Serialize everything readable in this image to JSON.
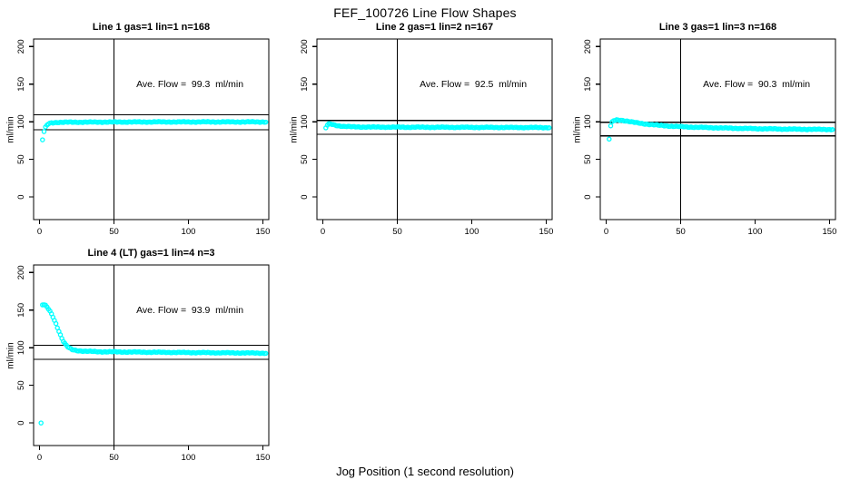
{
  "page": {
    "main_title": "FEF_100726  Line Flow Shapes",
    "x_axis_label": "Jog Position (1 second resolution)",
    "background_color": "#ffffff",
    "point_color": "#00ffff",
    "axis_color": "#000000",
    "text_color": "#000000"
  },
  "chart_data": [
    {
      "type": "scatter",
      "title": "Line 1 gas=1 lin=1 n=168",
      "ylabel": "ml/min",
      "annotation": "Ave. Flow =  99.3  ml/min",
      "ave_flow_ml_min": 99.3,
      "n": 168,
      "xlim": [
        -4,
        154
      ],
      "ylim": [
        -30,
        210
      ],
      "x_ticks": [
        0,
        50,
        100,
        150
      ],
      "y_ticks": [
        0,
        50,
        100,
        150,
        200
      ],
      "vline_x": 50,
      "hlines": [
        109.2,
        89.4
      ],
      "annotation_center": [
        101,
        150
      ],
      "x_start": 2,
      "x_end": 152,
      "x_step": 1,
      "curve_keypoints": [
        [
          2,
          76
        ],
        [
          3,
          87
        ],
        [
          4,
          92.5
        ],
        [
          5,
          95.5
        ],
        [
          6,
          97.3
        ],
        [
          8,
          98.6
        ],
        [
          12,
          99.2
        ],
        [
          20,
          99.4
        ],
        [
          40,
          99.6
        ],
        [
          80,
          99.8
        ],
        [
          152,
          99.8
        ]
      ],
      "outlier_points": []
    },
    {
      "type": "scatter",
      "title": "Line 2 gas=1 lin=2 n=167",
      "ylabel": "ml/min",
      "annotation": "Ave. Flow =  92.5  ml/min",
      "ave_flow_ml_min": 92.5,
      "n": 167,
      "xlim": [
        -4,
        154
      ],
      "ylim": [
        -30,
        210
      ],
      "x_ticks": [
        0,
        50,
        100,
        150
      ],
      "y_ticks": [
        0,
        50,
        100,
        150,
        200
      ],
      "vline_x": 50,
      "hlines": [
        101.8,
        83.3
      ],
      "annotation_center": [
        101,
        150
      ],
      "x_start": 2,
      "x_end": 152,
      "x_step": 1,
      "curve_keypoints": [
        [
          2,
          92
        ],
        [
          3,
          95.5
        ],
        [
          4,
          96.8
        ],
        [
          5,
          97
        ],
        [
          6,
          96.6
        ],
        [
          8,
          95.6
        ],
        [
          10,
          94.8
        ],
        [
          14,
          93.9
        ],
        [
          20,
          93.3
        ],
        [
          30,
          93
        ],
        [
          60,
          92.8
        ],
        [
          100,
          92.6
        ],
        [
          152,
          92.3
        ]
      ],
      "outlier_points": []
    },
    {
      "type": "scatter",
      "title": "Line 3 gas=1 lin=3 n=168",
      "ylabel": "ml/min",
      "annotation": "Ave. Flow =  90.3  ml/min",
      "ave_flow_ml_min": 90.3,
      "n": 168,
      "xlim": [
        -4,
        154
      ],
      "ylim": [
        -30,
        210
      ],
      "x_ticks": [
        0,
        50,
        100,
        150
      ],
      "y_ticks": [
        0,
        50,
        100,
        150,
        200
      ],
      "vline_x": 50,
      "hlines": [
        99.3,
        81.3
      ],
      "annotation_center": [
        101,
        150
      ],
      "x_start": 2,
      "x_end": 152,
      "x_step": 1,
      "curve_keypoints": [
        [
          2,
          77
        ],
        [
          3,
          94.5
        ],
        [
          4,
          99.5
        ],
        [
          5,
          101.3
        ],
        [
          7,
          102.4
        ],
        [
          10,
          102.2
        ],
        [
          14,
          100.9
        ],
        [
          18,
          99.4
        ],
        [
          25,
          97.4
        ],
        [
          35,
          95.4
        ],
        [
          45,
          94
        ],
        [
          55,
          93.1
        ],
        [
          70,
          92.2
        ],
        [
          90,
          91.2
        ],
        [
          110,
          90.6
        ],
        [
          130,
          90.1
        ],
        [
          152,
          89.8
        ]
      ],
      "outlier_points": []
    },
    {
      "type": "scatter",
      "title": "Line 4 (LT) gas=1 lin=4 n=3",
      "ylabel": "ml/min",
      "annotation": "Ave. Flow =  93.9  ml/min",
      "ave_flow_ml_min": 93.9,
      "n": 3,
      "xlim": [
        -4,
        154
      ],
      "ylim": [
        -30,
        210
      ],
      "x_ticks": [
        0,
        50,
        100,
        150
      ],
      "y_ticks": [
        0,
        50,
        100,
        150,
        200
      ],
      "vline_x": 50,
      "hlines": [
        103.3,
        84.5
      ],
      "annotation_center": [
        101,
        150
      ],
      "x_start": 2,
      "x_end": 152,
      "x_step": 1,
      "curve_keypoints": [
        [
          2,
          157
        ],
        [
          3,
          157
        ],
        [
          4,
          156
        ],
        [
          5,
          154
        ],
        [
          6,
          151.5
        ],
        [
          7,
          148.5
        ],
        [
          8,
          145
        ],
        [
          9,
          141
        ],
        [
          10,
          136.5
        ],
        [
          11,
          132
        ],
        [
          12,
          127
        ],
        [
          13,
          122
        ],
        [
          14,
          117
        ],
        [
          15,
          112.5
        ],
        [
          16,
          108.5
        ],
        [
          17,
          105.5
        ],
        [
          18,
          103
        ],
        [
          19,
          101
        ],
        [
          20,
          99.5
        ],
        [
          22,
          97.5
        ],
        [
          25,
          96.3
        ],
        [
          30,
          95.3
        ],
        [
          40,
          94.7
        ],
        [
          60,
          94.3
        ],
        [
          90,
          93.8
        ],
        [
          120,
          93.3
        ],
        [
          152,
          92.8
        ]
      ],
      "outlier_points": [
        [
          1,
          0
        ]
      ]
    }
  ],
  "layout_note": "2x3 panel grid, 4 panels used; vertical reference line at x=50; horizontal reference lines at average flow ±10%"
}
